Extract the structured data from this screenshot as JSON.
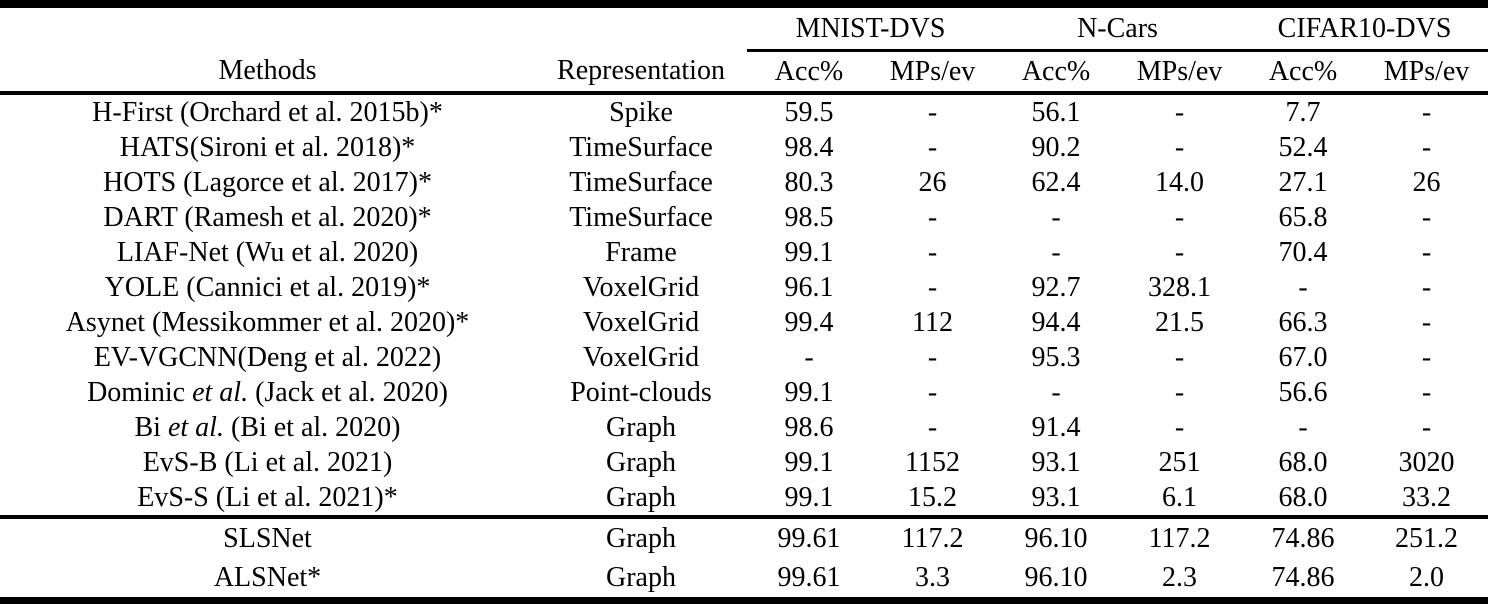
{
  "page": {
    "background_color": "#ffffff",
    "text_color": "#000000"
  },
  "table": {
    "headers": {
      "methods": "Methods",
      "representation": "Representation",
      "groups": [
        {
          "label": "MNIST-DVS"
        },
        {
          "label": "N-Cars"
        },
        {
          "label": "CIFAR10-DVS"
        }
      ],
      "metrics": [
        "Acc%",
        "MPs/ev",
        "Acc%",
        "MPs/ev",
        "Acc%",
        "MPs/ev"
      ]
    },
    "rows": [
      {
        "method": [
          {
            "text": "H-First (Orchard et al. 2015b)*",
            "italic": false
          }
        ],
        "representation": "Spike",
        "values": [
          "59.5",
          "-",
          "56.1",
          "-",
          "7.7",
          "-"
        ],
        "bold": [
          false,
          false,
          false,
          false,
          false,
          false
        ]
      },
      {
        "method": [
          {
            "text": "HATS(Sironi et al. 2018)*",
            "italic": false
          }
        ],
        "representation": "TimeSurface",
        "values": [
          "98.4",
          "-",
          "90.2",
          "-",
          "52.4",
          "-"
        ],
        "bold": [
          false,
          false,
          false,
          false,
          false,
          false
        ]
      },
      {
        "method": [
          {
            "text": "HOTS (Lagorce et al. 2017)*",
            "italic": false
          }
        ],
        "representation": "TimeSurface",
        "values": [
          "80.3",
          "26",
          "62.4",
          "14.0",
          "27.1",
          "26"
        ],
        "bold": [
          false,
          false,
          false,
          false,
          false,
          false
        ]
      },
      {
        "method": [
          {
            "text": "DART (Ramesh et al. 2020)*",
            "italic": false
          }
        ],
        "representation": "TimeSurface",
        "values": [
          "98.5",
          "-",
          "-",
          "-",
          "65.8",
          "-"
        ],
        "bold": [
          false,
          false,
          false,
          false,
          false,
          false
        ]
      },
      {
        "method": [
          {
            "text": "LIAF-Net (Wu et al. 2020)",
            "italic": false
          }
        ],
        "representation": "Frame",
        "values": [
          "99.1",
          "-",
          "-",
          "-",
          "70.4",
          "-"
        ],
        "bold": [
          false,
          false,
          false,
          false,
          false,
          false
        ]
      },
      {
        "method": [
          {
            "text": "YOLE (Cannici et al. 2019)*",
            "italic": false
          }
        ],
        "representation": "VoxelGrid",
        "values": [
          "96.1",
          "-",
          "92.7",
          "328.1",
          "-",
          "-"
        ],
        "bold": [
          false,
          false,
          false,
          false,
          false,
          false
        ]
      },
      {
        "method": [
          {
            "text": "Asynet (Messikommer et al. 2020)*",
            "italic": false
          }
        ],
        "representation": "VoxelGrid",
        "values": [
          "99.4",
          "112",
          "94.4",
          "21.5",
          "66.3",
          "-"
        ],
        "bold": [
          false,
          false,
          false,
          false,
          false,
          false
        ]
      },
      {
        "method": [
          {
            "text": "EV-VGCNN(Deng et al. 2022)",
            "italic": false
          }
        ],
        "representation": "VoxelGrid",
        "values": [
          "-",
          "-",
          "95.3",
          "-",
          "67.0",
          "-"
        ],
        "bold": [
          false,
          false,
          false,
          false,
          false,
          false
        ]
      },
      {
        "method": [
          {
            "text": "Dominic ",
            "italic": false
          },
          {
            "text": "et al.",
            "italic": true
          },
          {
            "text": " (Jack et al. 2020)",
            "italic": false
          }
        ],
        "representation": "Point-clouds",
        "values": [
          "99.1",
          "-",
          "-",
          "-",
          "56.6",
          "-"
        ],
        "bold": [
          false,
          false,
          false,
          false,
          false,
          false
        ]
      },
      {
        "method": [
          {
            "text": "Bi ",
            "italic": false
          },
          {
            "text": "et al.",
            "italic": true
          },
          {
            "text": " (Bi et al. 2020)",
            "italic": false
          }
        ],
        "representation": "Graph",
        "values": [
          "98.6",
          "-",
          "91.4",
          "-",
          "-",
          "-"
        ],
        "bold": [
          false,
          false,
          false,
          false,
          false,
          false
        ]
      },
      {
        "method": [
          {
            "text": "EvS-B (Li et al. 2021)",
            "italic": false
          }
        ],
        "representation": "Graph",
        "values": [
          "99.1",
          "1152",
          "93.1",
          "251",
          "68.0",
          "3020"
        ],
        "bold": [
          false,
          false,
          false,
          false,
          false,
          false
        ]
      },
      {
        "method": [
          {
            "text": "EvS-S (Li et al. 2021)*",
            "italic": false
          }
        ],
        "representation": "Graph",
        "values": [
          "99.1",
          "15.2",
          "93.1",
          "6.1",
          "68.0",
          "33.2"
        ],
        "bold": [
          false,
          false,
          false,
          false,
          false,
          false
        ]
      }
    ],
    "summary_rows": [
      {
        "method": [
          {
            "text": "SLSNet",
            "italic": false
          }
        ],
        "representation": "Graph",
        "values": [
          "99.61",
          "117.2",
          "96.10",
          "117.2",
          "74.86",
          "251.2"
        ],
        "bold": [
          true,
          false,
          true,
          false,
          true,
          false
        ]
      },
      {
        "method": [
          {
            "text": "ALSNet*",
            "italic": false
          }
        ],
        "representation": "Graph",
        "values": [
          "99.61",
          "3.3",
          "96.10",
          "2.3",
          "74.86",
          "2.0"
        ],
        "bold": [
          true,
          true,
          true,
          true,
          true,
          true
        ]
      }
    ]
  }
}
